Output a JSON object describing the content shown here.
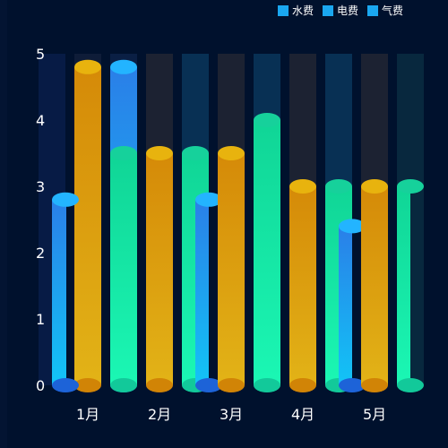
{
  "chart_data": {
    "type": "bar",
    "categories": [
      "1月",
      "2月",
      "3月",
      "4月",
      "5月"
    ],
    "series": [
      {
        "name": "水费",
        "color": "#1aa7f0",
        "values": [
          2.8,
          4.8,
          3.5,
          4.0,
          3.0
        ]
      },
      {
        "name": "电费",
        "color": "#1aa7f0",
        "values": [
          4.8,
          3.5,
          3.5,
          3.0,
          3.0
        ]
      },
      {
        "name": "气费",
        "color": "#1aa7f0",
        "values": [
          3.5,
          2.8,
          3.0,
          2.4,
          3.0
        ]
      }
    ],
    "ylim": [
      0,
      5
    ],
    "yticks": [
      "0",
      "1",
      "2",
      "3",
      "4",
      "5"
    ],
    "legend_position": "top-right",
    "colors": {
      "background": "#00112d",
      "blue": "#1e90ff",
      "gold": "#e0a010",
      "green": "#14e3a0",
      "cap_blue": "#23b4ff",
      "cap_gold": "#e8b30e",
      "cap_green": "#16d19b"
    }
  }
}
